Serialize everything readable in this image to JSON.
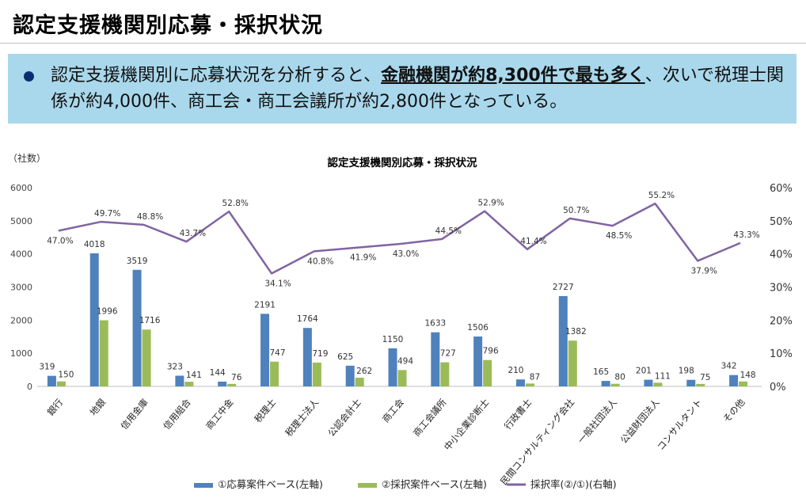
{
  "header": {
    "title": "認定支援機関別応募・採択状況"
  },
  "summary": {
    "part1": "認定支援機関別に応募状況を分析すると、",
    "emphasis": "金融機関が約8,300件で最も多く",
    "part2": "、次いで税理士関係が約4,000件、商工会・商工会議所が約2,800件となっている。"
  },
  "chart_data": {
    "type": "bar",
    "title": "認定支援機関別応募・採択状況",
    "left_axis_unit": "（社数）",
    "categories": [
      "銀行",
      "地銀",
      "信用金庫",
      "信用組合",
      "商工中金",
      "税理士",
      "税理士法人",
      "公認会計士",
      "商工会",
      "商工会議所",
      "中小企業診断士",
      "行政書士",
      "民間コンサルティング会社",
      "一般社団法人",
      "公益財団法人",
      "コンサルタント",
      "その他"
    ],
    "series": [
      {
        "name": "①応募案件ベース(左軸)",
        "axis": "left",
        "color": "#4f81bd",
        "values": [
          319,
          4018,
          3519,
          323,
          144,
          2191,
          1764,
          625,
          1150,
          1633,
          1506,
          210,
          2727,
          165,
          201,
          198,
          342
        ]
      },
      {
        "name": "②採択案件ベース(左軸)",
        "axis": "left",
        "color": "#9bbb59",
        "values": [
          150,
          1996,
          1716,
          141,
          76,
          747,
          719,
          262,
          494,
          727,
          796,
          87,
          1382,
          80,
          111,
          75,
          148
        ]
      },
      {
        "name": "採択率(②/①)(右軸)",
        "axis": "right",
        "type": "line",
        "color": "#8064a2",
        "values": [
          47.0,
          49.7,
          48.8,
          43.7,
          52.8,
          34.1,
          40.8,
          41.9,
          43.0,
          44.5,
          52.9,
          41.4,
          50.7,
          48.5,
          55.2,
          37.9,
          43.3
        ]
      }
    ],
    "left_ylim": [
      0,
      6000
    ],
    "left_ticks": [
      0,
      1000,
      2000,
      3000,
      4000,
      5000,
      6000
    ],
    "right_ylim": [
      0,
      60
    ],
    "right_ticks": [
      "0%",
      "10%",
      "20%",
      "30%",
      "40%",
      "50%",
      "60%"
    ],
    "rate_labels": [
      "47.0%",
      "49.7%",
      "48.8%",
      "43.7%",
      "52.8%",
      "34.1%",
      "40.8%",
      "41.9%",
      "43.0%",
      "44.5%",
      "52.9%",
      "41.4%",
      "50.7%",
      "48.5%",
      "55.2%",
      "37.9%",
      "43.3%"
    ],
    "grid": false,
    "legend_position": "bottom"
  }
}
